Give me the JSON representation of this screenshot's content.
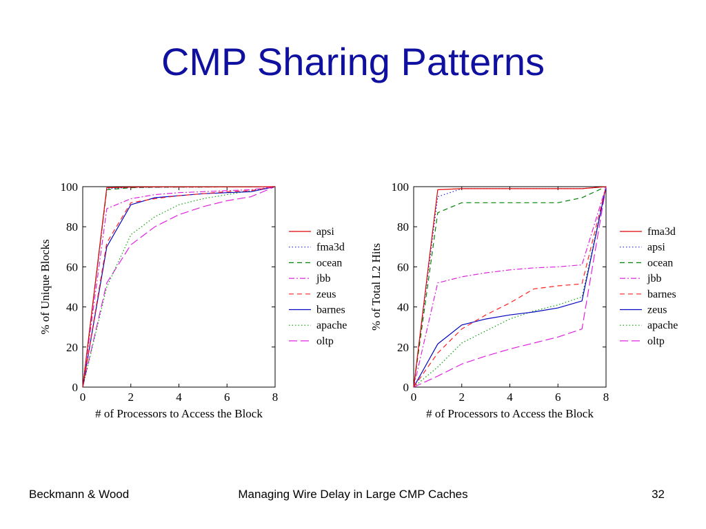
{
  "slide": {
    "title": "CMP Sharing Patterns",
    "footer_left": "Beckmann & Wood",
    "footer_center": "Managing Wire Delay in Large CMP Caches",
    "page_number": "32"
  },
  "chart_data": [
    {
      "type": "line",
      "title": "",
      "xlabel": "# of Processors to Access the Block",
      "ylabel": "% of Unique Blocks",
      "xlim": [
        0,
        8
      ],
      "ylim": [
        0,
        100
      ],
      "xticks": [
        0,
        2,
        4,
        6,
        8
      ],
      "yticks": [
        0,
        20,
        40,
        60,
        80,
        100
      ],
      "grid": false,
      "legend_position": "right",
      "x": [
        0,
        1,
        2,
        3,
        4,
        5,
        6,
        7,
        8
      ],
      "series": [
        {
          "name": "apsi",
          "color": "#e00000",
          "dash": "solid",
          "values": [
            0,
            99.5,
            99.8,
            99.9,
            99.9,
            99.9,
            99.9,
            99.9,
            100
          ]
        },
        {
          "name": "fma3d",
          "color": "#2020e0",
          "dash": "dotted",
          "values": [
            0,
            99.0,
            99.6,
            99.7,
            99.8,
            99.8,
            99.9,
            99.9,
            100
          ]
        },
        {
          "name": "ocean",
          "color": "#008000",
          "dash": "dashed",
          "values": [
            0,
            98.5,
            99.5,
            99.7,
            99.8,
            99.8,
            99.9,
            99.9,
            100
          ]
        },
        {
          "name": "jbb",
          "color": "#e020e0",
          "dash": "dashdot",
          "values": [
            0,
            89,
            94,
            96,
            97,
            97.5,
            98,
            98.5,
            100
          ]
        },
        {
          "name": "zeus",
          "color": "#ff2020",
          "dash": "dashed",
          "values": [
            0,
            72,
            92,
            94,
            95.5,
            96.5,
            97.5,
            98,
            100
          ]
        },
        {
          "name": "barnes",
          "color": "#0000c0",
          "dash": "solid",
          "values": [
            0,
            70,
            91,
            94.5,
            95.5,
            96.5,
            97,
            97.5,
            100
          ]
        },
        {
          "name": "apache",
          "color": "#00a000",
          "dash": "dotted",
          "values": [
            0,
            50,
            76,
            85,
            91,
            94,
            96,
            98,
            100
          ]
        },
        {
          "name": "oltp",
          "color": "#e020e0",
          "dash": "longdash",
          "values": [
            0,
            52,
            71,
            80,
            86,
            90,
            93,
            95,
            100
          ]
        }
      ]
    },
    {
      "type": "line",
      "title": "",
      "xlabel": "# of Processors to Access the Block",
      "ylabel": "% of Total L2 Hits",
      "xlim": [
        0,
        8
      ],
      "ylim": [
        0,
        100
      ],
      "xticks": [
        0,
        2,
        4,
        6,
        8
      ],
      "yticks": [
        0,
        20,
        40,
        60,
        80,
        100
      ],
      "grid": false,
      "legend_position": "right",
      "x": [
        0,
        1,
        2,
        3,
        4,
        5,
        6,
        7,
        8
      ],
      "series": [
        {
          "name": "fma3d",
          "color": "#e00000",
          "dash": "solid",
          "values": [
            0,
            98.5,
            99,
            99,
            99,
            99,
            99,
            99,
            100
          ]
        },
        {
          "name": "apsi",
          "color": "#2020e0",
          "dash": "dotted",
          "values": [
            0,
            95,
            99,
            99,
            99,
            99,
            99,
            99,
            100
          ]
        },
        {
          "name": "ocean",
          "color": "#008000",
          "dash": "dashed",
          "values": [
            0,
            87,
            92,
            92,
            92,
            92,
            92,
            94.5,
            100
          ]
        },
        {
          "name": "jbb",
          "color": "#e020e0",
          "dash": "dashdot",
          "values": [
            0,
            52,
            55,
            57,
            58.5,
            59.5,
            60,
            61,
            100
          ]
        },
        {
          "name": "barnes",
          "color": "#ff2020",
          "dash": "dashed",
          "values": [
            0,
            17,
            29,
            36,
            42,
            49,
            50.5,
            51.5,
            100
          ]
        },
        {
          "name": "zeus",
          "color": "#0000c0",
          "dash": "solid",
          "values": [
            0,
            21.5,
            31,
            34,
            36,
            37.5,
            39.5,
            43,
            100
          ]
        },
        {
          "name": "apache",
          "color": "#00a000",
          "dash": "dotted",
          "values": [
            0,
            10,
            22,
            28,
            34,
            38,
            41,
            45,
            100
          ]
        },
        {
          "name": "oltp",
          "color": "#e020e0",
          "dash": "longdash",
          "values": [
            0,
            5.5,
            11.5,
            15.5,
            19,
            22,
            25,
            29,
            100
          ]
        }
      ]
    }
  ]
}
